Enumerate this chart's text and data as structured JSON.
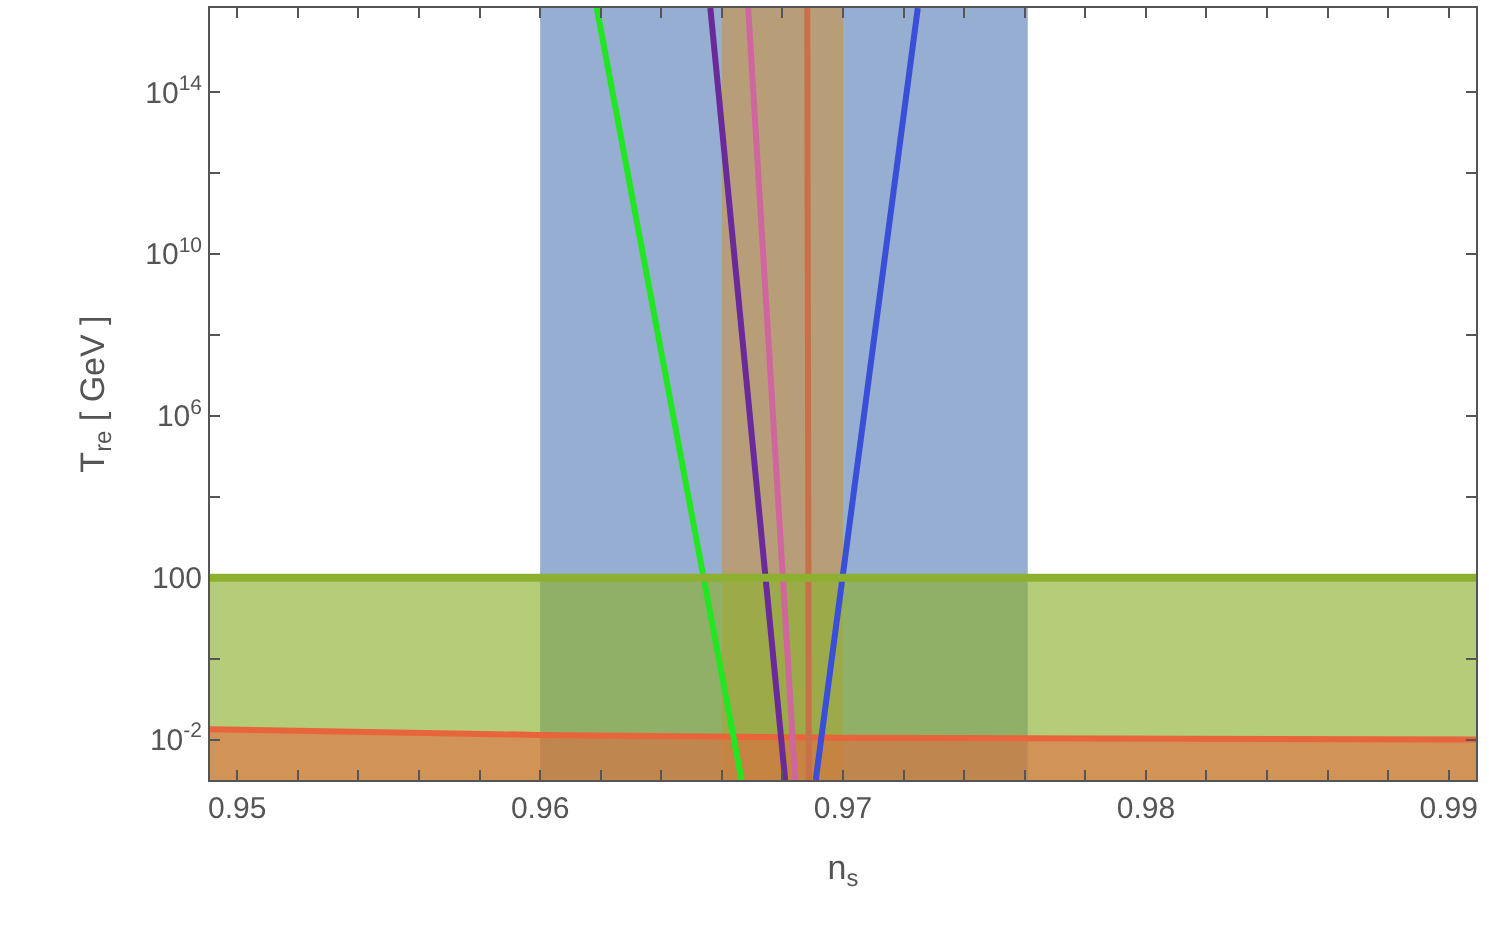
{
  "chart_data": {
    "type": "line",
    "xlabel": "n$_{s}$",
    "ylabel": "T$_{re}$ [ GeV ]",
    "log": "y",
    "grid": false,
    "marker": "none",
    "line_style": "solid",
    "xlim": [
      0.9491,
      0.9909
    ],
    "ylim": [
      0.001,
      1.2e+16
    ],
    "xticks": [
      0.95,
      {
        "value": 0.952,
        "label": null
      },
      {
        "value": 0.954,
        "label": null
      },
      {
        "value": 0.956,
        "label": null
      },
      {
        "value": 0.958,
        "label": null
      },
      0.96,
      {
        "value": 0.962,
        "label": null
      },
      {
        "value": 0.964,
        "label": null
      },
      {
        "value": 0.966,
        "label": null
      },
      {
        "value": 0.968,
        "label": null
      },
      0.97,
      {
        "value": 0.972,
        "label": null
      },
      {
        "value": 0.974,
        "label": null
      },
      {
        "value": 0.976,
        "label": null
      },
      {
        "value": 0.978,
        "label": null
      },
      0.98,
      {
        "value": 0.982,
        "label": null
      },
      {
        "value": 0.984,
        "label": null
      },
      {
        "value": 0.986,
        "label": null
      },
      {
        "value": 0.988,
        "label": null
      },
      0.99
    ],
    "yticks": [
      {
        "value": 0.01,
        "label": "10$^{-2}$"
      },
      {
        "value": 1,
        "label": null
      },
      100,
      {
        "value": 10000,
        "label": null
      },
      {
        "value": 1000000,
        "label": "10$^{6}$"
      },
      {
        "value": 100000000,
        "label": null
      },
      {
        "value": 10000000000,
        "label": "10$^{10}$"
      },
      {
        "value": 1000000000000,
        "label": null
      },
      {
        "value": 100000000000000,
        "label": "10$^{14}$"
      }
    ],
    "bands": [
      {
        "axis": "x",
        "from": 0.96,
        "to": 0.9761,
        "color": "#5e82b9"
      },
      {
        "axis": "x",
        "from": 0.966,
        "to": 0.97,
        "color": "#c9954a"
      },
      {
        "axis": "y",
        "from": 0.001,
        "to": 100,
        "color": "#8db030"
      }
    ],
    "ref_lines": [
      {
        "axis": "y",
        "value": 100,
        "color": "#8db030",
        "line_style": "solid"
      }
    ],
    "series": [
      {
        "type": "area",
        "color": "#e8643a",
        "x": [
          0.9491,
          0.96,
          0.97,
          0.9909
        ],
        "values": [
          0.018,
          0.013,
          0.011,
          0.01
        ]
      },
      {
        "color": "#22e622",
        "x": [
          0.96187,
          0.96665
        ],
        "values": [
          1.2e+16,
          0.001
        ]
      },
      {
        "color": "#6a2a9a",
        "x": [
          0.96562,
          0.96809
        ],
        "values": [
          1.2e+16,
          0.001
        ]
      },
      {
        "color": "#d0669e",
        "x": [
          0.96687,
          0.96842
        ],
        "values": [
          1.2e+16,
          0.001
        ]
      },
      {
        "color": "#c8704a",
        "x": [
          0.96882,
          0.96887
        ],
        "values": [
          1.2e+16,
          0.001
        ]
      },
      {
        "color": "#3a4fd8",
        "x": [
          0.97247,
          0.9691
        ],
        "values": [
          1.2e+16,
          0.001
        ]
      }
    ]
  }
}
